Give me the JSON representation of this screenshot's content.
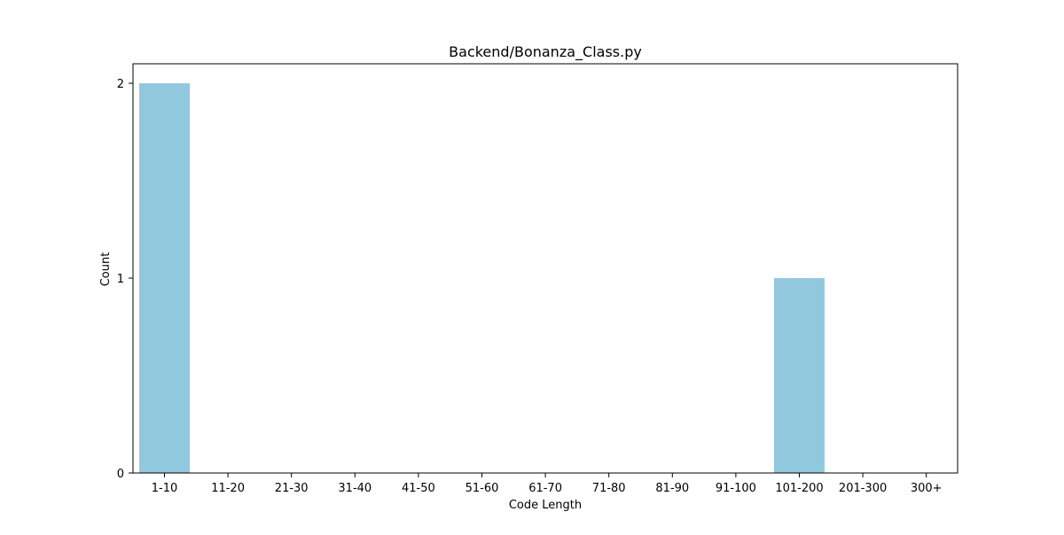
{
  "chart_data": {
    "type": "bar",
    "title": "Backend/Bonanza_Class.py",
    "xlabel": "Code Length",
    "ylabel": "Count",
    "categories": [
      "1-10",
      "11-20",
      "21-30",
      "31-40",
      "41-50",
      "51-60",
      "61-70",
      "71-80",
      "81-90",
      "91-100",
      "101-200",
      "201-300",
      "300+"
    ],
    "values": [
      2,
      0,
      0,
      0,
      0,
      0,
      0,
      0,
      0,
      0,
      1,
      0,
      0
    ],
    "ylim": [
      0,
      2.1
    ],
    "yticks": [
      0,
      1,
      2
    ],
    "bar_color": "#92c8dd",
    "grid": false,
    "legend": "none"
  }
}
